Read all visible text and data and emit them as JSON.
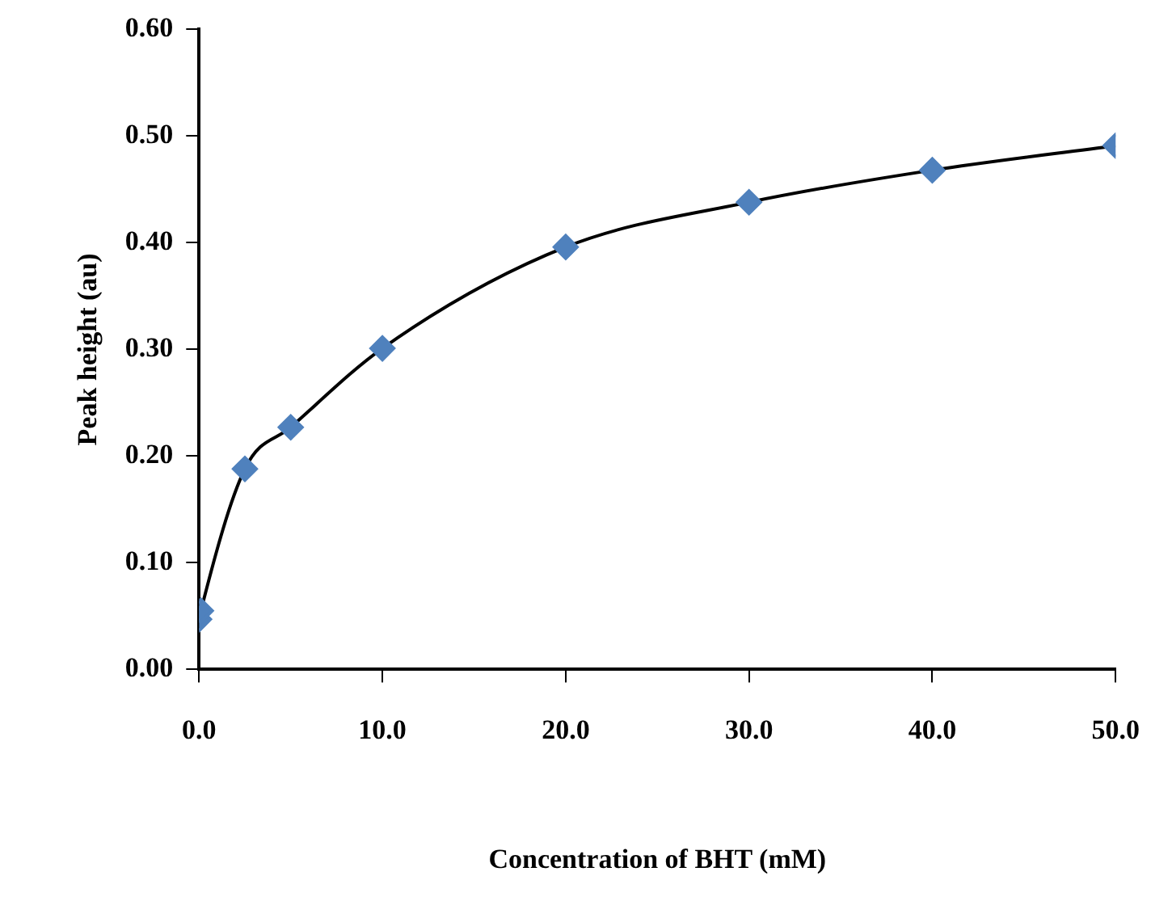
{
  "chart_data": {
    "type": "line",
    "xlabel": "Concentration of BHT (mM)",
    "ylabel": "Peak height (au)",
    "x": [
      0,
      0.1,
      2.5,
      5,
      10,
      20,
      30,
      40,
      50
    ],
    "series": [
      {
        "color": "#4f81bd",
        "values": [
          0.047,
          0.055,
          0.188,
          0.227,
          0.301,
          0.396,
          0.438,
          0.468,
          0.491
        ]
      }
    ],
    "xlim": [
      0,
      50
    ],
    "xticks": [
      {
        "value": 0,
        "label": "0.0"
      },
      {
        "value": 10,
        "label": "10.0"
      },
      {
        "value": 20,
        "label": "20.0"
      },
      {
        "value": 30,
        "label": "30.0"
      },
      {
        "value": 40,
        "label": "40.0"
      },
      {
        "value": 50,
        "label": "50.0"
      }
    ],
    "ylim": [
      0,
      0.6
    ],
    "yticks": [
      {
        "value": 0,
        "label": "0.00"
      },
      {
        "value": 0.1,
        "label": "0.10"
      },
      {
        "value": 0.2,
        "label": "0.20"
      },
      {
        "value": 0.3,
        "label": "0.30"
      },
      {
        "value": 0.4,
        "label": "0.40"
      },
      {
        "value": 0.5,
        "label": "0.50"
      },
      {
        "value": 0.6,
        "label": "0.60"
      }
    ],
    "grid": false,
    "legend": false,
    "marker": "diamond",
    "line_style": "solid"
  }
}
